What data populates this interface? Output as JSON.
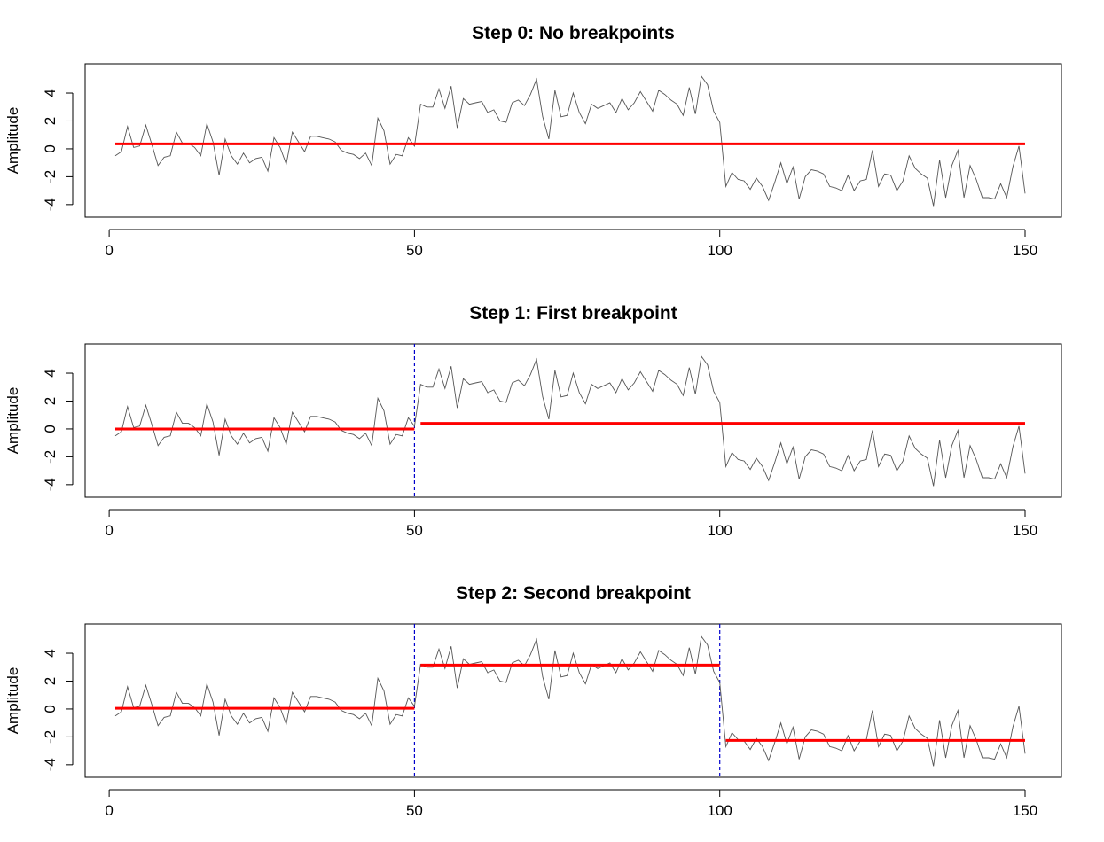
{
  "chart_data": [
    {
      "type": "line",
      "title": "Step 0: No breakpoints",
      "xlabel": "",
      "ylabel": "Amplitude",
      "xlim": [
        1,
        150
      ],
      "ylim": [
        -4.2,
        5.4
      ],
      "x_ticks": [
        0,
        50,
        100,
        150
      ],
      "y_ticks": [
        -4,
        -2,
        0,
        2,
        4
      ],
      "grid": false,
      "breakpoints": [],
      "segment_means": [
        {
          "x_start": 1,
          "x_end": 150,
          "mean": 0.35
        }
      ],
      "colors": {
        "signal": "#555555",
        "mean": "#ff0000",
        "breakpoint": "#0000cc"
      }
    },
    {
      "type": "line",
      "title": "Step 1: First breakpoint",
      "xlabel": "",
      "ylabel": "Amplitude",
      "xlim": [
        1,
        150
      ],
      "ylim": [
        -4.2,
        5.4
      ],
      "x_ticks": [
        0,
        50,
        100,
        150
      ],
      "y_ticks": [
        -4,
        -2,
        0,
        2,
        4
      ],
      "grid": false,
      "breakpoints": [
        50
      ],
      "segment_means": [
        {
          "x_start": 1,
          "x_end": 50,
          "mean": 0.0
        },
        {
          "x_start": 51,
          "x_end": 150,
          "mean": 0.4
        }
      ],
      "colors": {
        "signal": "#555555",
        "mean": "#ff0000",
        "breakpoint": "#0000cc"
      }
    },
    {
      "type": "line",
      "title": "Step 2: Second breakpoint",
      "xlabel": "",
      "ylabel": "Amplitude",
      "xlim": [
        1,
        150
      ],
      "ylim": [
        -4.2,
        5.4
      ],
      "x_ticks": [
        0,
        50,
        100,
        150
      ],
      "y_ticks": [
        -4,
        -2,
        0,
        2,
        4
      ],
      "grid": false,
      "breakpoints": [
        50,
        100
      ],
      "segment_means": [
        {
          "x_start": 1,
          "x_end": 50,
          "mean": 0.05
        },
        {
          "x_start": 51,
          "x_end": 100,
          "mean": 3.15
        },
        {
          "x_start": 101,
          "x_end": 150,
          "mean": -2.25
        }
      ],
      "colors": {
        "signal": "#555555",
        "mean": "#ff0000",
        "breakpoint": "#0000cc"
      }
    }
  ],
  "signal": {
    "x_start": 1,
    "y": [
      -0.5,
      -0.2,
      1.6,
      0.1,
      0.2,
      1.7,
      0.3,
      -1.2,
      -0.6,
      -0.5,
      1.2,
      0.4,
      0.4,
      0.1,
      -0.5,
      1.8,
      0.5,
      -1.9,
      0.7,
      -0.5,
      -1.1,
      -0.3,
      -1.0,
      -0.7,
      -0.6,
      -1.6,
      0.8,
      0.1,
      -1.1,
      1.2,
      0.5,
      -0.2,
      0.9,
      0.9,
      0.8,
      0.7,
      0.5,
      -0.1,
      -0.3,
      -0.4,
      -0.7,
      -0.3,
      -1.2,
      2.2,
      1.3,
      -1.1,
      -0.4,
      -0.5,
      0.8,
      0.2,
      3.2,
      3.0,
      3.0,
      4.3,
      2.9,
      4.5,
      1.5,
      3.6,
      3.2,
      3.3,
      3.4,
      2.6,
      2.8,
      2.0,
      1.9,
      3.3,
      3.5,
      3.1,
      3.9,
      5.0,
      2.3,
      0.7,
      4.2,
      2.3,
      2.4,
      4.0,
      2.6,
      1.8,
      3.2,
      2.9,
      3.1,
      3.3,
      2.6,
      3.6,
      2.8,
      3.3,
      4.1,
      3.4,
      2.7,
      4.2,
      3.9,
      3.5,
      3.2,
      2.4,
      4.4,
      2.5,
      5.2,
      4.6,
      2.7,
      1.9,
      -2.7,
      -1.7,
      -2.2,
      -2.3,
      -2.9,
      -2.1,
      -2.7,
      -3.7,
      -2.4,
      -1.0,
      -2.5,
      -1.3,
      -3.6,
      -2.0,
      -1.5,
      -1.6,
      -1.8,
      -2.7,
      -2.8,
      -3.0,
      -1.9,
      -3.0,
      -2.3,
      -2.2,
      -0.1,
      -2.7,
      -1.8,
      -1.9,
      -3.0,
      -2.3,
      -0.5,
      -1.4,
      -1.8,
      -2.1,
      -4.1,
      -0.8,
      -3.5,
      -1.2,
      -0.1,
      -3.5,
      -1.2,
      -2.2,
      -3.5,
      -3.5,
      -3.6,
      -2.5,
      -3.5,
      -1.3,
      0.2,
      -3.2
    ]
  }
}
